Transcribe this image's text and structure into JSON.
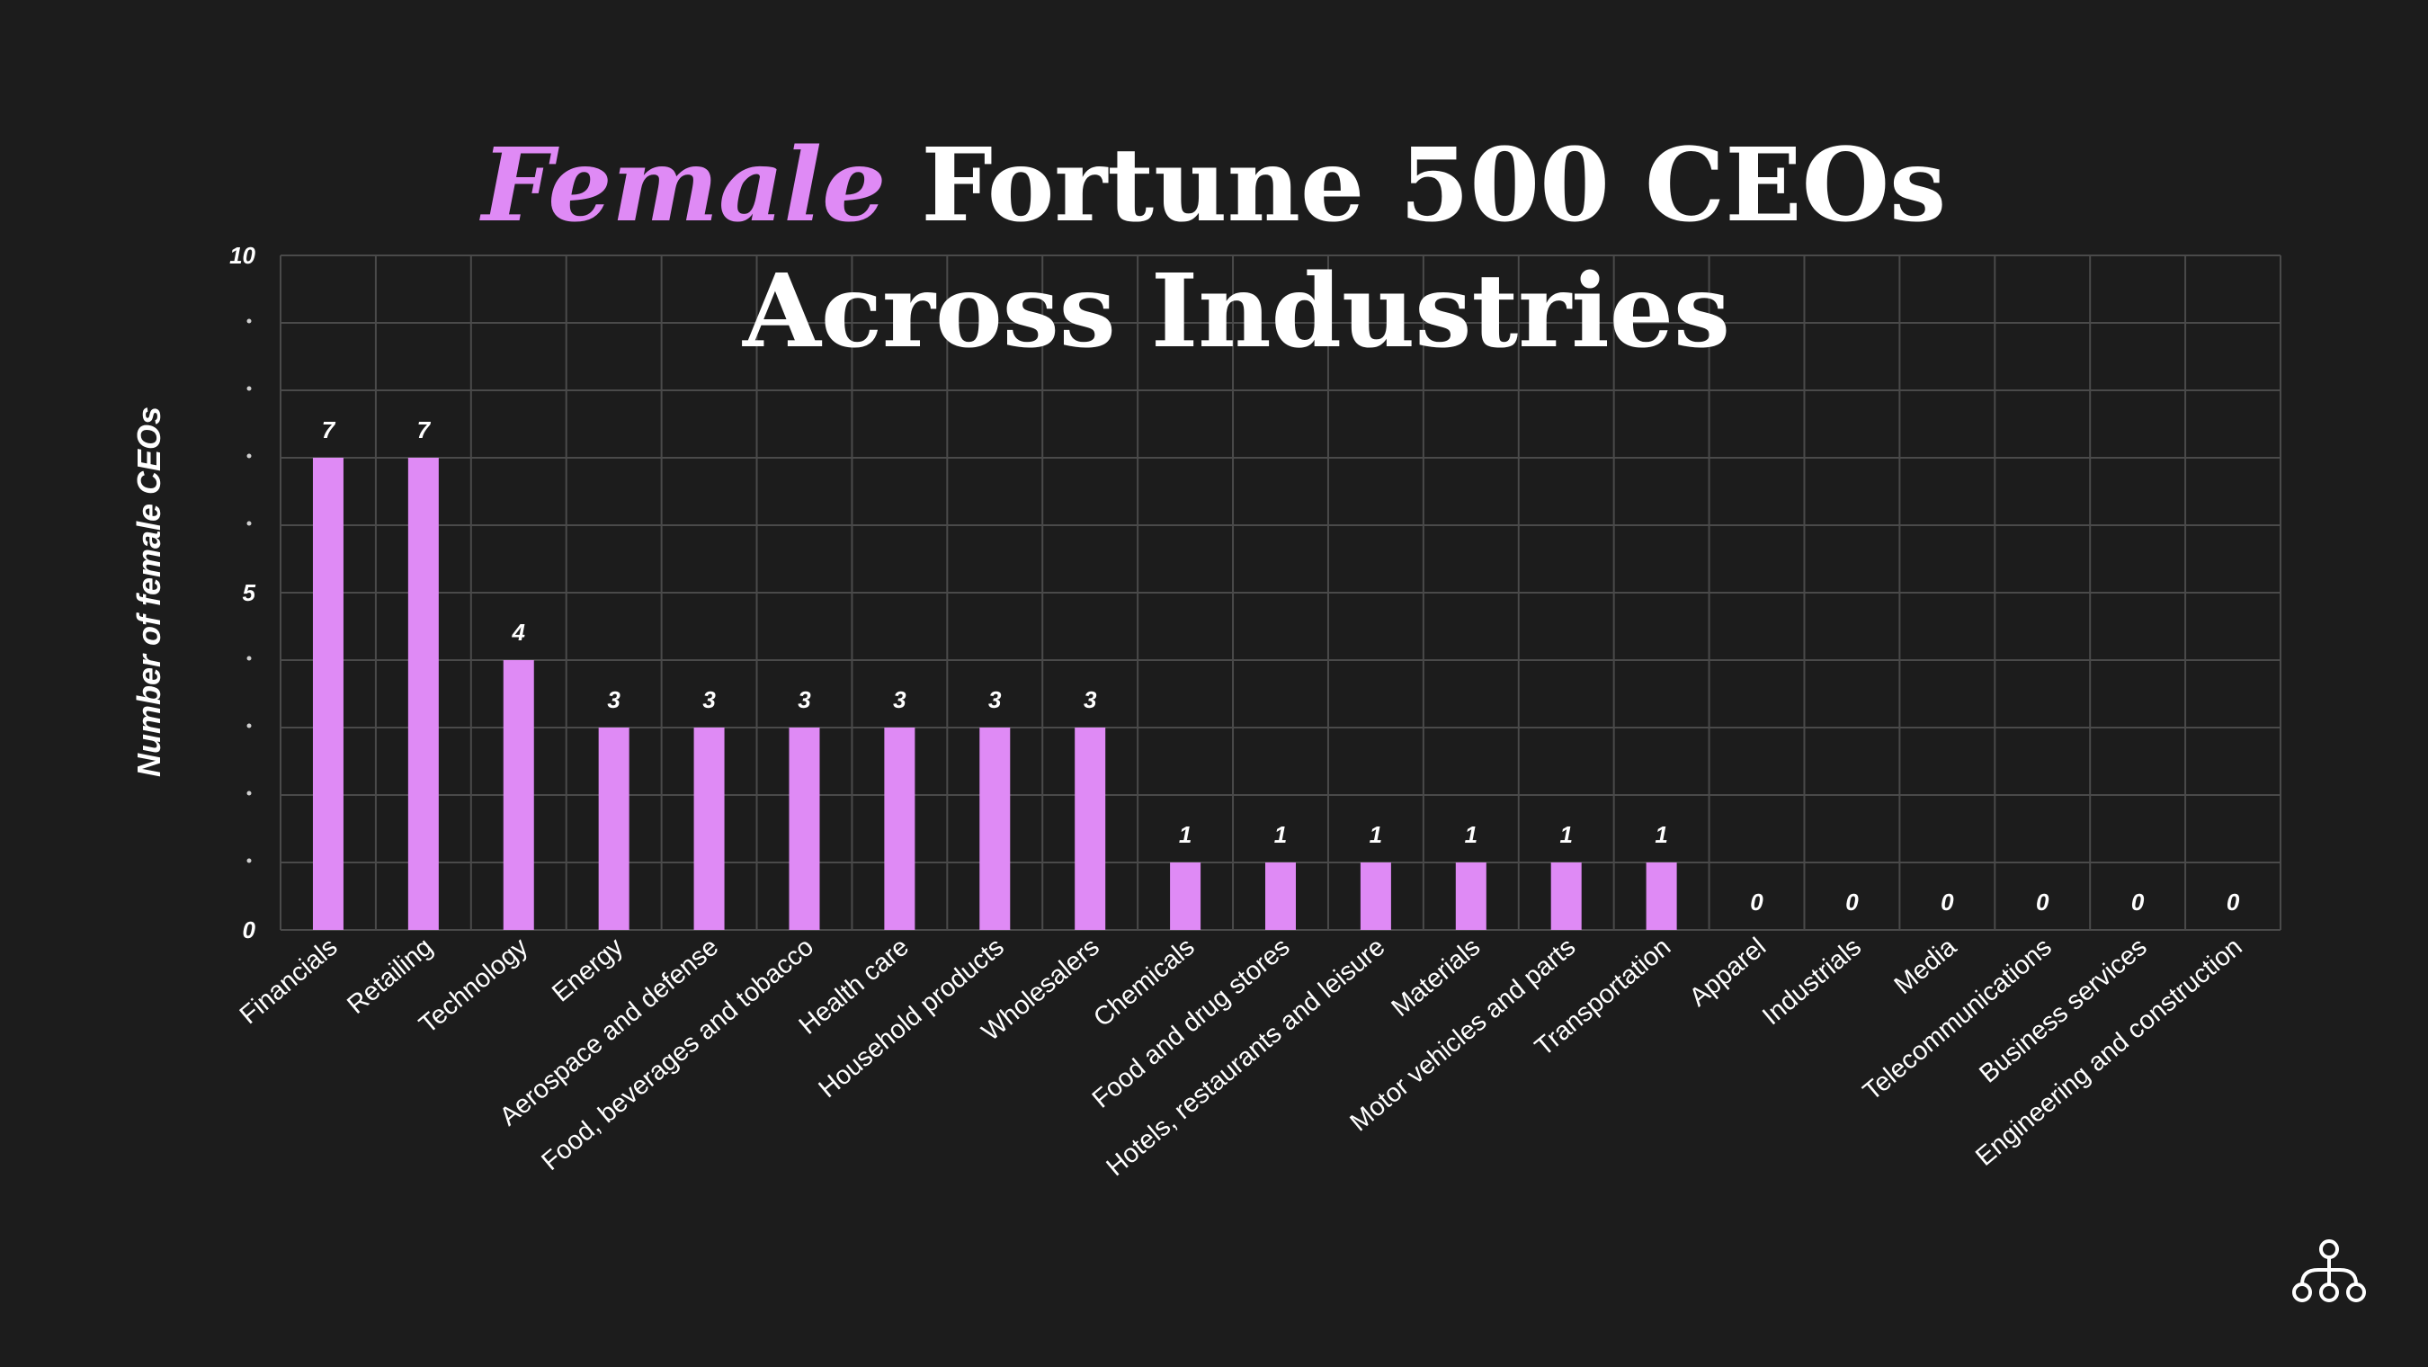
{
  "chart_data": {
    "type": "bar",
    "title": {
      "accent": "Female",
      "rest": "Fortune 500 CEOs",
      "line2": "Across Industries"
    },
    "xlabel": "",
    "ylabel": "Number of female CEOs",
    "ylim": [
      0,
      10
    ],
    "y_ticks": [
      0,
      5,
      10
    ],
    "y_tick_labels": [
      "0",
      "5",
      "10"
    ],
    "grid": true,
    "categories": [
      "Financials",
      "Retailing",
      "Technology",
      "Energy",
      "Aerospace and defense",
      "Food, beverages and tobacco",
      "Health care",
      "Household products",
      "Wholesalers",
      "Chemicals",
      "Food and drug stores",
      "Hotels, restaurants and leisure",
      "Materials",
      "Motor vehicles and parts",
      "Transportation",
      "Apparel",
      "Industrials",
      "Media",
      "Telecommunications",
      "Business services",
      "Engineering and construction"
    ],
    "values": [
      7,
      7,
      4,
      3,
      3,
      3,
      3,
      3,
      3,
      1,
      1,
      1,
      1,
      1,
      1,
      0,
      0,
      0,
      0,
      0,
      0
    ],
    "data_labels": [
      "7",
      "7",
      "4",
      "3",
      "3",
      "3",
      "3",
      "3",
      "3",
      "1",
      "1",
      "1",
      "1",
      "1",
      "1",
      "0",
      "0",
      "0",
      "0",
      "0",
      "0"
    ]
  },
  "colors": {
    "background": "#1c1c1c",
    "bar": "#df8af5",
    "accent_text": "#df8af5",
    "text": "#ffffff",
    "grid": "#4a4a4a"
  },
  "logo": {
    "icon": "org-chart-icon"
  }
}
